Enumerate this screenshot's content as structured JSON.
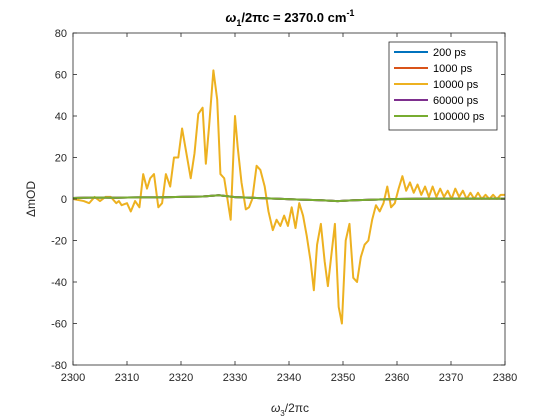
{
  "chart_data": {
    "type": "line",
    "title": {
      "omega_sym": "ω",
      "sub": "1",
      "mid": "/2",
      "pi_sym": "π",
      "rest": "c = 2370.0 cm",
      "sup": "-1"
    },
    "xlabel": {
      "omega_sym": "ω",
      "sub": "3",
      "mid": "/2",
      "pi_sym": "π",
      "rest": "c"
    },
    "ylabel": "ΔmOD",
    "xlim": [
      2300,
      2380
    ],
    "ylim": [
      -80,
      80
    ],
    "x_ticks": [
      "2300",
      "2310",
      "2320",
      "2330",
      "2340",
      "2350",
      "2360",
      "2370",
      "2380"
    ],
    "y_ticks": [
      "80",
      "60",
      "40",
      "20",
      "0",
      "-20",
      "-40",
      "-60",
      "-80"
    ],
    "grid": false,
    "legend_position": "top-right",
    "series": [
      {
        "name": "200 ps",
        "color": "#0072BD",
        "x": [
          2300,
          2304,
          2308,
          2312,
          2316,
          2320,
          2324,
          2327,
          2330,
          2334,
          2338,
          2342,
          2346,
          2349,
          2352,
          2356,
          2360,
          2364,
          2368,
          2372,
          2376,
          2380
        ],
        "y": [
          0.5,
          0.7,
          0.6,
          0.8,
          0.8,
          1.0,
          1.2,
          1.8,
          0.9,
          0.5,
          0.1,
          -0.3,
          -0.6,
          -1.0,
          -0.6,
          -0.3,
          0.0,
          0.1,
          0.2,
          0.2,
          0.2,
          0.2
        ]
      },
      {
        "name": "1000 ps",
        "color": "#D95319",
        "x": [
          2300,
          2304,
          2308,
          2312,
          2316,
          2320,
          2324,
          2327,
          2330,
          2334,
          2338,
          2342,
          2346,
          2349,
          2352,
          2356,
          2360,
          2364,
          2368,
          2372,
          2376,
          2380
        ],
        "y": [
          0.5,
          0.7,
          0.6,
          0.8,
          0.8,
          1.0,
          1.2,
          1.8,
          0.9,
          0.5,
          0.1,
          -0.3,
          -0.6,
          -1.0,
          -0.6,
          -0.3,
          0.0,
          0.1,
          0.2,
          0.2,
          0.2,
          0.2
        ]
      },
      {
        "name": "10000 ps",
        "color": "#EDB120",
        "x": [
          2300,
          2301,
          2302,
          2303,
          2304,
          2305,
          2306,
          2307,
          2308,
          2308.5,
          2309,
          2310,
          2310.7,
          2311.5,
          2312.3,
          2313,
          2313.7,
          2314.3,
          2315,
          2315.8,
          2316.5,
          2317.2,
          2318,
          2318.7,
          2319.5,
          2320.2,
          2321,
          2321.8,
          2322.5,
          2323.2,
          2324,
          2324.6,
          2325.2,
          2326,
          2326.7,
          2327.3,
          2328,
          2328.6,
          2329.2,
          2330,
          2330.5,
          2331.2,
          2332,
          2332.6,
          2333.2,
          2334,
          2334.7,
          2335.5,
          2336.2,
          2337,
          2337.7,
          2338.4,
          2339.1,
          2339.8,
          2340.5,
          2341.2,
          2341.9,
          2342.6,
          2343.3,
          2344,
          2344.6,
          2345.2,
          2345.9,
          2346.6,
          2347.2,
          2347.8,
          2348.5,
          2349.2,
          2349.8,
          2350.5,
          2351.2,
          2351.9,
          2352.6,
          2353.3,
          2354,
          2354.7,
          2355.4,
          2356.1,
          2356.8,
          2357.5,
          2358.2,
          2358.9,
          2359.6,
          2360.3,
          2361,
          2361.7,
          2362.4,
          2363.1,
          2363.8,
          2364.5,
          2365.2,
          2365.9,
          2366.6,
          2367.3,
          2368,
          2368.7,
          2369.4,
          2370.1,
          2370.8,
          2371.5,
          2372.2,
          2372.9,
          2373.6,
          2374.3,
          2375,
          2375.7,
          2376.4,
          2377.1,
          2377.8,
          2378.5,
          2379.2,
          2380
        ],
        "y": [
          0,
          -0.5,
          -1,
          -2,
          1,
          -1,
          1,
          1,
          -2,
          -1,
          -3,
          -2,
          -6,
          -1,
          -4,
          12,
          5,
          10,
          12,
          -4,
          -2,
          12,
          6,
          20,
          20,
          34,
          22,
          10,
          22,
          41,
          44,
          17,
          35,
          62,
          48,
          12,
          10,
          0,
          -10,
          40,
          25,
          8,
          -5,
          -4,
          0,
          16,
          14,
          6,
          -6,
          -15,
          -10,
          -13,
          -8,
          -13,
          -4,
          -14,
          -2,
          -8,
          -18,
          -30,
          -44,
          -22,
          -12,
          -30,
          -42,
          -28,
          -12,
          -52,
          -60,
          -20,
          -12,
          -38,
          -40,
          -28,
          -22,
          -20,
          -10,
          -3,
          -6,
          -2,
          6,
          -4,
          -2,
          5,
          11,
          4,
          8,
          3,
          7,
          2,
          6,
          1,
          6,
          1,
          5,
          1,
          4,
          0,
          5,
          1,
          4,
          0,
          3,
          0,
          3,
          0,
          2,
          0,
          2,
          0,
          2,
          2
        ]
      },
      {
        "name": "60000 ps",
        "color": "#7E2F8E",
        "x": [
          2300,
          2304,
          2308,
          2312,
          2316,
          2320,
          2324,
          2327,
          2330,
          2334,
          2338,
          2342,
          2346,
          2349,
          2352,
          2356,
          2360,
          2364,
          2368,
          2372,
          2376,
          2380
        ],
        "y": [
          0.5,
          0.7,
          0.6,
          0.8,
          0.8,
          1.0,
          1.2,
          1.8,
          0.9,
          0.5,
          0.1,
          -0.3,
          -0.6,
          -1.0,
          -0.6,
          -0.3,
          0.0,
          0.1,
          0.2,
          0.2,
          0.2,
          0.2
        ]
      },
      {
        "name": "100000 ps",
        "color": "#77AC30",
        "x": [
          2300,
          2304,
          2308,
          2312,
          2316,
          2320,
          2324,
          2327,
          2330,
          2334,
          2338,
          2342,
          2346,
          2349,
          2352,
          2356,
          2360,
          2364,
          2368,
          2372,
          2376,
          2380
        ],
        "y": [
          0.5,
          0.7,
          0.6,
          0.8,
          0.8,
          1.0,
          1.2,
          1.8,
          0.9,
          0.5,
          0.1,
          -0.3,
          -0.6,
          -1.0,
          -0.6,
          -0.3,
          0.0,
          0.1,
          0.2,
          0.2,
          0.2,
          0.2
        ]
      }
    ]
  }
}
